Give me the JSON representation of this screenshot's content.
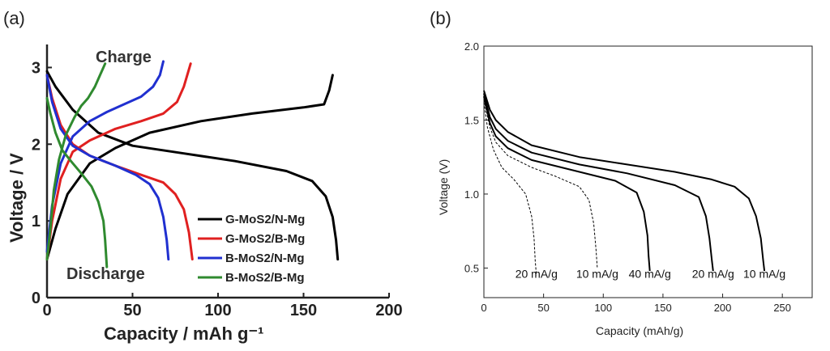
{
  "panel_labels": {
    "a": "(a)",
    "b": "(b)"
  },
  "chart_data": [
    {
      "type": "line",
      "panel": "(a)",
      "xlabel": "Capacity / mAh g⁻¹",
      "ylabel": "Voltage / V",
      "xlim": [
        0,
        200
      ],
      "ylim": [
        0,
        3.3
      ],
      "xticks": [
        0,
        50,
        100,
        150,
        200
      ],
      "yticks": [
        0,
        1,
        2,
        3
      ],
      "grid": false,
      "legend_position": "bottom-right",
      "annotations": {
        "charge": "Charge",
        "discharge": "Discharge"
      },
      "series": [
        {
          "name": "G-MoS2/N-Mg",
          "color": "#000000",
          "discharge": [
            [
              0,
              2.95
            ],
            [
              5,
              2.75
            ],
            [
              15,
              2.45
            ],
            [
              30,
              2.15
            ],
            [
              50,
              1.98
            ],
            [
              80,
              1.88
            ],
            [
              110,
              1.78
            ],
            [
              140,
              1.65
            ],
            [
              155,
              1.52
            ],
            [
              163,
              1.32
            ],
            [
              167,
              1.05
            ],
            [
              169,
              0.75
            ],
            [
              170,
              0.5
            ]
          ],
          "charge": [
            [
              0,
              0.5
            ],
            [
              5,
              0.9
            ],
            [
              12,
              1.35
            ],
            [
              25,
              1.75
            ],
            [
              40,
              1.95
            ],
            [
              60,
              2.15
            ],
            [
              90,
              2.3
            ],
            [
              120,
              2.4
            ],
            [
              150,
              2.48
            ],
            [
              162,
              2.52
            ],
            [
              165,
              2.7
            ],
            [
              167,
              2.9
            ]
          ]
        },
        {
          "name": "G-MoS2/B-Mg",
          "color": "#e02020",
          "discharge": [
            [
              0,
              2.9
            ],
            [
              3,
              2.6
            ],
            [
              8,
              2.25
            ],
            [
              15,
              2.0
            ],
            [
              25,
              1.85
            ],
            [
              40,
              1.72
            ],
            [
              55,
              1.6
            ],
            [
              68,
              1.5
            ],
            [
              75,
              1.35
            ],
            [
              80,
              1.15
            ],
            [
              83,
              0.85
            ],
            [
              85,
              0.5
            ]
          ],
          "charge": [
            [
              0,
              0.5
            ],
            [
              3,
              1.0
            ],
            [
              8,
              1.55
            ],
            [
              15,
              1.9
            ],
            [
              25,
              2.05
            ],
            [
              40,
              2.2
            ],
            [
              55,
              2.3
            ],
            [
              68,
              2.4
            ],
            [
              76,
              2.55
            ],
            [
              80,
              2.75
            ],
            [
              84,
              3.05
            ]
          ]
        },
        {
          "name": "B-MoS2/N-Mg",
          "color": "#2030d0",
          "discharge": [
            [
              0,
              2.9
            ],
            [
              3,
              2.55
            ],
            [
              8,
              2.2
            ],
            [
              15,
              1.98
            ],
            [
              25,
              1.85
            ],
            [
              40,
              1.72
            ],
            [
              52,
              1.6
            ],
            [
              60,
              1.48
            ],
            [
              65,
              1.3
            ],
            [
              68,
              1.05
            ],
            [
              70,
              0.75
            ],
            [
              71,
              0.5
            ]
          ],
          "charge": [
            [
              0,
              0.6
            ],
            [
              3,
              1.2
            ],
            [
              8,
              1.75
            ],
            [
              15,
              2.1
            ],
            [
              25,
              2.3
            ],
            [
              35,
              2.42
            ],
            [
              45,
              2.52
            ],
            [
              55,
              2.62
            ],
            [
              62,
              2.75
            ],
            [
              66,
              2.9
            ],
            [
              68,
              3.08
            ]
          ]
        },
        {
          "name": "B-MoS2/B-Mg",
          "color": "#2f8a2f",
          "discharge": [
            [
              0,
              2.6
            ],
            [
              2,
              2.4
            ],
            [
              5,
              2.15
            ],
            [
              9,
              1.92
            ],
            [
              14,
              1.78
            ],
            [
              20,
              1.62
            ],
            [
              26,
              1.45
            ],
            [
              30,
              1.25
            ],
            [
              33,
              1.0
            ],
            [
              34,
              0.75
            ],
            [
              35,
              0.4
            ]
          ],
          "charge": [
            [
              0,
              0.5
            ],
            [
              2,
              0.9
            ],
            [
              4,
              1.4
            ],
            [
              7,
              1.8
            ],
            [
              11,
              2.12
            ],
            [
              16,
              2.35
            ],
            [
              20,
              2.5
            ],
            [
              24,
              2.6
            ],
            [
              28,
              2.75
            ],
            [
              31,
              2.9
            ],
            [
              34,
              3.05
            ]
          ]
        }
      ]
    },
    {
      "type": "line",
      "panel": "(b)",
      "xlabel": "Capacity (mAh/g)",
      "ylabel": "Voltage (V)",
      "xlim": [
        0,
        275
      ],
      "ylim": [
        0.3,
        2.0
      ],
      "xticks": [
        0,
        50,
        100,
        150,
        200,
        250
      ],
      "yticks": [
        0.5,
        1.0,
        1.5,
        2.0
      ],
      "ytick_labels": [
        "0.5",
        "1.0",
        "1.5",
        "2.0"
      ],
      "grid": false,
      "series": [
        {
          "name": "10 mA/g",
          "style": "solid",
          "label": "10 mA/g",
          "points": [
            [
              0,
              1.7
            ],
            [
              5,
              1.57
            ],
            [
              10,
              1.5
            ],
            [
              20,
              1.42
            ],
            [
              40,
              1.33
            ],
            [
              80,
              1.25
            ],
            [
              120,
              1.2
            ],
            [
              160,
              1.15
            ],
            [
              190,
              1.1
            ],
            [
              210,
              1.05
            ],
            [
              222,
              0.97
            ],
            [
              228,
              0.85
            ],
            [
              232,
              0.7
            ],
            [
              234,
              0.55
            ],
            [
              235,
              0.48
            ]
          ]
        },
        {
          "name": "20 mA/g",
          "style": "solid",
          "label": "20 mA/g",
          "points": [
            [
              0,
              1.68
            ],
            [
              5,
              1.52
            ],
            [
              10,
              1.44
            ],
            [
              20,
              1.36
            ],
            [
              40,
              1.28
            ],
            [
              80,
              1.2
            ],
            [
              120,
              1.14
            ],
            [
              160,
              1.06
            ],
            [
              180,
              0.98
            ],
            [
              186,
              0.85
            ],
            [
              189,
              0.7
            ],
            [
              191,
              0.55
            ],
            [
              192,
              0.48
            ]
          ]
        },
        {
          "name": "40 mA/g",
          "style": "solid",
          "label": "40 mA/g",
          "points": [
            [
              0,
              1.66
            ],
            [
              5,
              1.48
            ],
            [
              10,
              1.39
            ],
            [
              20,
              1.31
            ],
            [
              40,
              1.23
            ],
            [
              80,
              1.15
            ],
            [
              110,
              1.09
            ],
            [
              128,
              1.01
            ],
            [
              134,
              0.88
            ],
            [
              137,
              0.72
            ],
            [
              138,
              0.58
            ],
            [
              139,
              0.48
            ]
          ]
        },
        {
          "name": "10 mA/g (dashed)",
          "style": "dashed",
          "label": "10 mA/g",
          "points": [
            [
              0,
              1.64
            ],
            [
              5,
              1.45
            ],
            [
              10,
              1.35
            ],
            [
              20,
              1.26
            ],
            [
              40,
              1.18
            ],
            [
              60,
              1.12
            ],
            [
              80,
              1.05
            ],
            [
              88,
              0.96
            ],
            [
              92,
              0.8
            ],
            [
              94,
              0.62
            ],
            [
              95,
              0.5
            ]
          ]
        },
        {
          "name": "20 mA/g (dashed)",
          "style": "dashed",
          "label": "20 mA/g",
          "points": [
            [
              0,
              1.62
            ],
            [
              3,
              1.45
            ],
            [
              8,
              1.3
            ],
            [
              15,
              1.18
            ],
            [
              25,
              1.1
            ],
            [
              35,
              1.0
            ],
            [
              40,
              0.85
            ],
            [
              42,
              0.7
            ],
            [
              43,
              0.55
            ],
            [
              44,
              0.45
            ]
          ]
        }
      ]
    }
  ]
}
